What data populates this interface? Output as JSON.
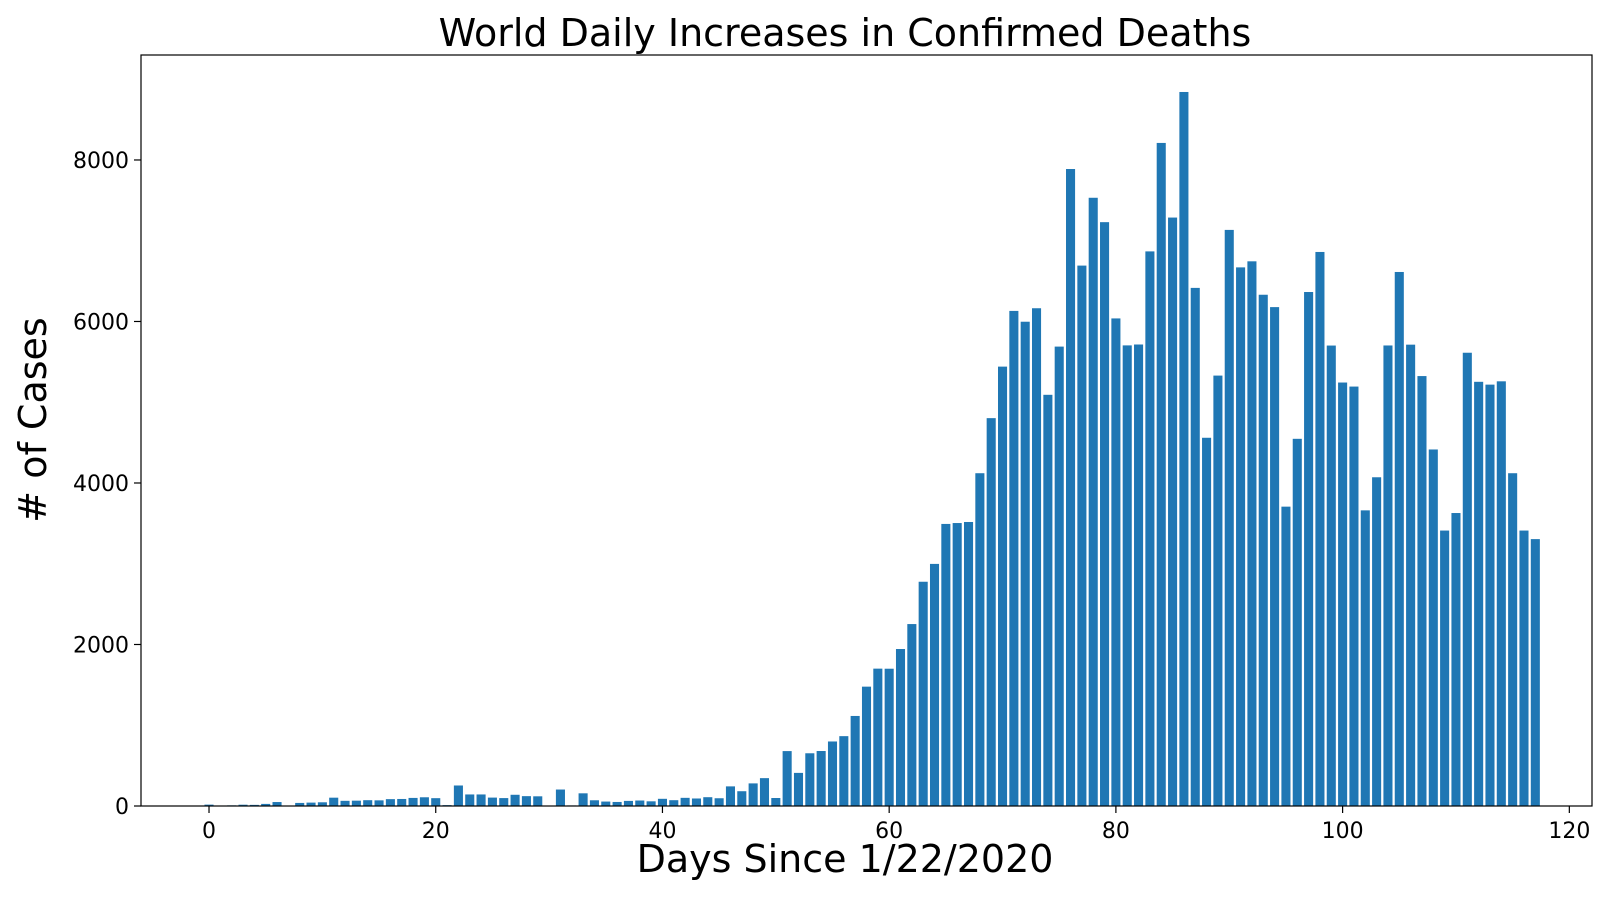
{
  "chart_data": {
    "type": "bar",
    "title": "World Daily Increases in Confirmed Deaths",
    "xlabel": "Days Since 1/22/2020",
    "ylabel": "# of Cases",
    "xlim": [
      -6,
      122
    ],
    "ylim": [
      0,
      9300
    ],
    "xticks": [
      0,
      20,
      40,
      60,
      80,
      100,
      120
    ],
    "yticks": [
      0,
      2000,
      4000,
      6000,
      8000
    ],
    "grid": false,
    "bar_color": "#1f77b4",
    "x": [
      0,
      1,
      2,
      3,
      4,
      5,
      6,
      7,
      8,
      9,
      10,
      11,
      12,
      13,
      14,
      15,
      16,
      17,
      18,
      19,
      20,
      21,
      22,
      23,
      24,
      25,
      26,
      27,
      28,
      29,
      30,
      31,
      32,
      33,
      34,
      35,
      36,
      37,
      38,
      39,
      40,
      41,
      42,
      43,
      44,
      45,
      46,
      47,
      48,
      49,
      50,
      51,
      52,
      53,
      54,
      55,
      56,
      57,
      58,
      59,
      60,
      61,
      62,
      63,
      64,
      65,
      66,
      67,
      68,
      69,
      70,
      71,
      72,
      73,
      74,
      75,
      76,
      77,
      78,
      79,
      80,
      81,
      82,
      83,
      84,
      85,
      86,
      87,
      88,
      89,
      90,
      91,
      92,
      93,
      94,
      95,
      96,
      97,
      98,
      99,
      100,
      101,
      102,
      103,
      104,
      105,
      106,
      107,
      108,
      109,
      110,
      111,
      112,
      113,
      114,
      115,
      116,
      117
    ],
    "values": [
      17,
      0,
      8,
      16,
      14,
      26,
      49,
      2,
      38,
      42,
      46,
      103,
      64,
      66,
      72,
      70,
      85,
      87,
      100,
      108,
      97,
      11,
      254,
      143,
      143,
      104,
      98,
      139,
      122,
      120,
      3,
      204,
      7,
      157,
      71,
      55,
      50,
      63,
      68,
      58,
      89,
      72,
      101,
      93,
      109,
      96,
      243,
      183,
      280,
      345,
      99,
      680,
      410,
      653,
      681,
      799,
      865,
      1115,
      1478,
      1701,
      1700,
      1944,
      2253,
      2777,
      2998,
      3493,
      3504,
      3517,
      4121,
      4803,
      5441,
      6131,
      5997,
      6164,
      5092,
      5689,
      7888,
      6692,
      7532,
      7230,
      6038,
      5704,
      5715,
      6868,
      8211,
      7287,
      8842,
      6416,
      4560,
      5330,
      7134,
      6670,
      6745,
      6331,
      6178,
      3707,
      4547,
      6365,
      6861,
      5702,
      5244,
      5194,
      3661,
      4071,
      5703,
      6613,
      5713,
      5324,
      4415,
      3411,
      3628,
      5613,
      5253,
      5218,
      5259,
      4121,
      3411,
      3305
    ]
  }
}
